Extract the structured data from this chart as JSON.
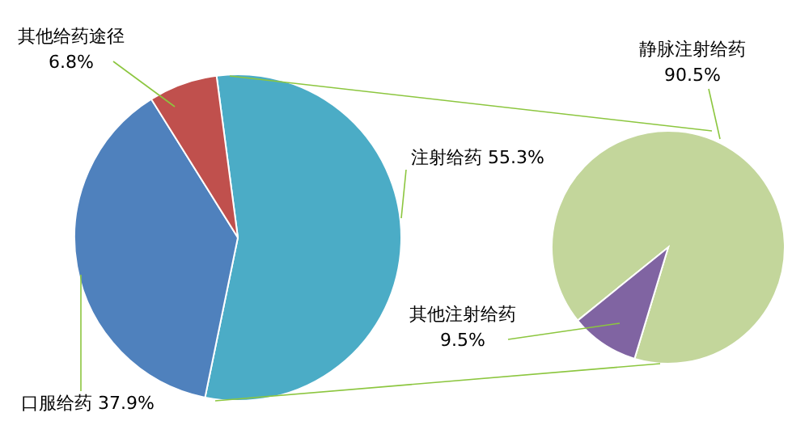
{
  "chart_data": [
    {
      "type": "pie",
      "categories": [
        "注射给药",
        "口服给药",
        "其他给药途径"
      ],
      "values": [
        55.3,
        37.9,
        6.8
      ],
      "colors": [
        "#4bacc6",
        "#4f81bd",
        "#c0504d"
      ],
      "value_labels": [
        "55.3%",
        "37.9%",
        "6.8%"
      ]
    },
    {
      "type": "pie",
      "categories": [
        "静脉注射给药",
        "其他注射给药"
      ],
      "values": [
        90.5,
        9.5
      ],
      "colors": [
        "#c3d69b",
        "#8064a2"
      ],
      "value_labels": [
        "90.5%",
        "9.5%"
      ]
    }
  ]
}
